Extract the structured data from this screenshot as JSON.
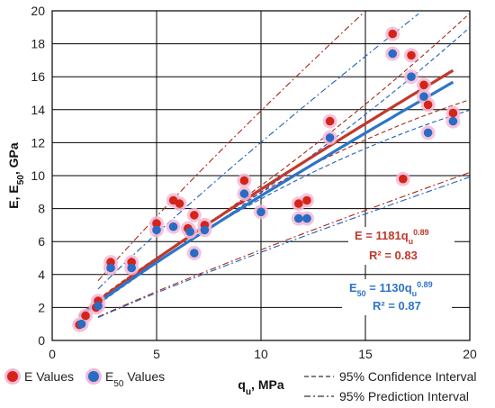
{
  "chart_data": {
    "type": "scatter",
    "xlabel_main": "q",
    "xlabel_sub": "u",
    "xlabel_rest": ", MPa",
    "ylabel_main": "E,  E",
    "ylabel_sub": "50",
    "ylabel_rest": ",  GPa",
    "xlim": [
      0,
      20
    ],
    "ylim": [
      0,
      20
    ],
    "xticks": [
      "0",
      "5",
      "10",
      "15",
      "20"
    ],
    "yticks": [
      "0",
      "2",
      "4",
      "6",
      "8",
      "10",
      "12",
      "14",
      "16",
      "18",
      "20"
    ],
    "grid": true,
    "colors": {
      "e": "#d42418",
      "e50": "#2a6bc4",
      "e_line": "#c0392b",
      "e50_line": "#2e74c9",
      "e_interval": "#a8281c",
      "e50_interval": "#1f5fb8",
      "halo": "#f3b8d6"
    },
    "series": [
      {
        "name": "E Values",
        "points": [
          [
            1.3,
            0.95
          ],
          [
            1.6,
            1.5
          ],
          [
            2.1,
            2.0
          ],
          [
            2.2,
            2.4
          ],
          [
            2.8,
            4.75
          ],
          [
            3.8,
            4.75
          ],
          [
            5.0,
            7.1
          ],
          [
            5.8,
            8.5
          ],
          [
            6.1,
            8.3
          ],
          [
            6.5,
            6.8
          ],
          [
            6.8,
            7.6
          ],
          [
            7.3,
            7.0
          ],
          [
            9.2,
            9.7
          ],
          [
            11.8,
            8.3
          ],
          [
            12.2,
            8.5
          ],
          [
            13.3,
            13.3
          ],
          [
            16.3,
            18.6
          ],
          [
            16.8,
            9.8
          ],
          [
            17.2,
            17.3
          ],
          [
            17.8,
            15.5
          ],
          [
            18.0,
            14.3
          ],
          [
            19.2,
            13.8
          ]
        ]
      },
      {
        "name": "E50 Values",
        "points": [
          [
            1.4,
            1.0
          ],
          [
            2.2,
            2.1
          ],
          [
            2.8,
            4.4
          ],
          [
            3.8,
            4.4
          ],
          [
            5.0,
            6.7
          ],
          [
            5.8,
            6.9
          ],
          [
            6.6,
            6.6
          ],
          [
            6.8,
            5.3
          ],
          [
            7.3,
            6.7
          ],
          [
            9.2,
            8.9
          ],
          [
            10.0,
            7.8
          ],
          [
            11.8,
            7.4
          ],
          [
            12.2,
            7.4
          ],
          [
            13.3,
            12.3
          ],
          [
            16.3,
            17.4
          ],
          [
            17.2,
            16.0
          ],
          [
            17.8,
            14.8
          ],
          [
            18.0,
            12.6
          ],
          [
            19.2,
            13.3
          ]
        ]
      }
    ],
    "fits": [
      {
        "name": "E fit",
        "coef": 1181,
        "exp": 0.89,
        "equation_lhs": "E = 1181q",
        "equation_sub": "u",
        "equation_sup": "0.89",
        "r2": "R² = 0.83"
      },
      {
        "name": "E50 fit",
        "coef": 1130,
        "exp": 0.89,
        "equation_lhs": "E",
        "equation_lhs_sub": "50",
        "equation_rhs": " = 1130q",
        "equation_sub": "u",
        "equation_sup": "0.89",
        "r2": "R² = 0.87"
      }
    ],
    "legend": {
      "e_label": "E Values",
      "e50_label_main": "E",
      "e50_label_sub": "50",
      "e50_label_rest": " Values",
      "ci_label": "95% Confidence Interval",
      "pi_label": "95% Prediction Interval"
    }
  }
}
